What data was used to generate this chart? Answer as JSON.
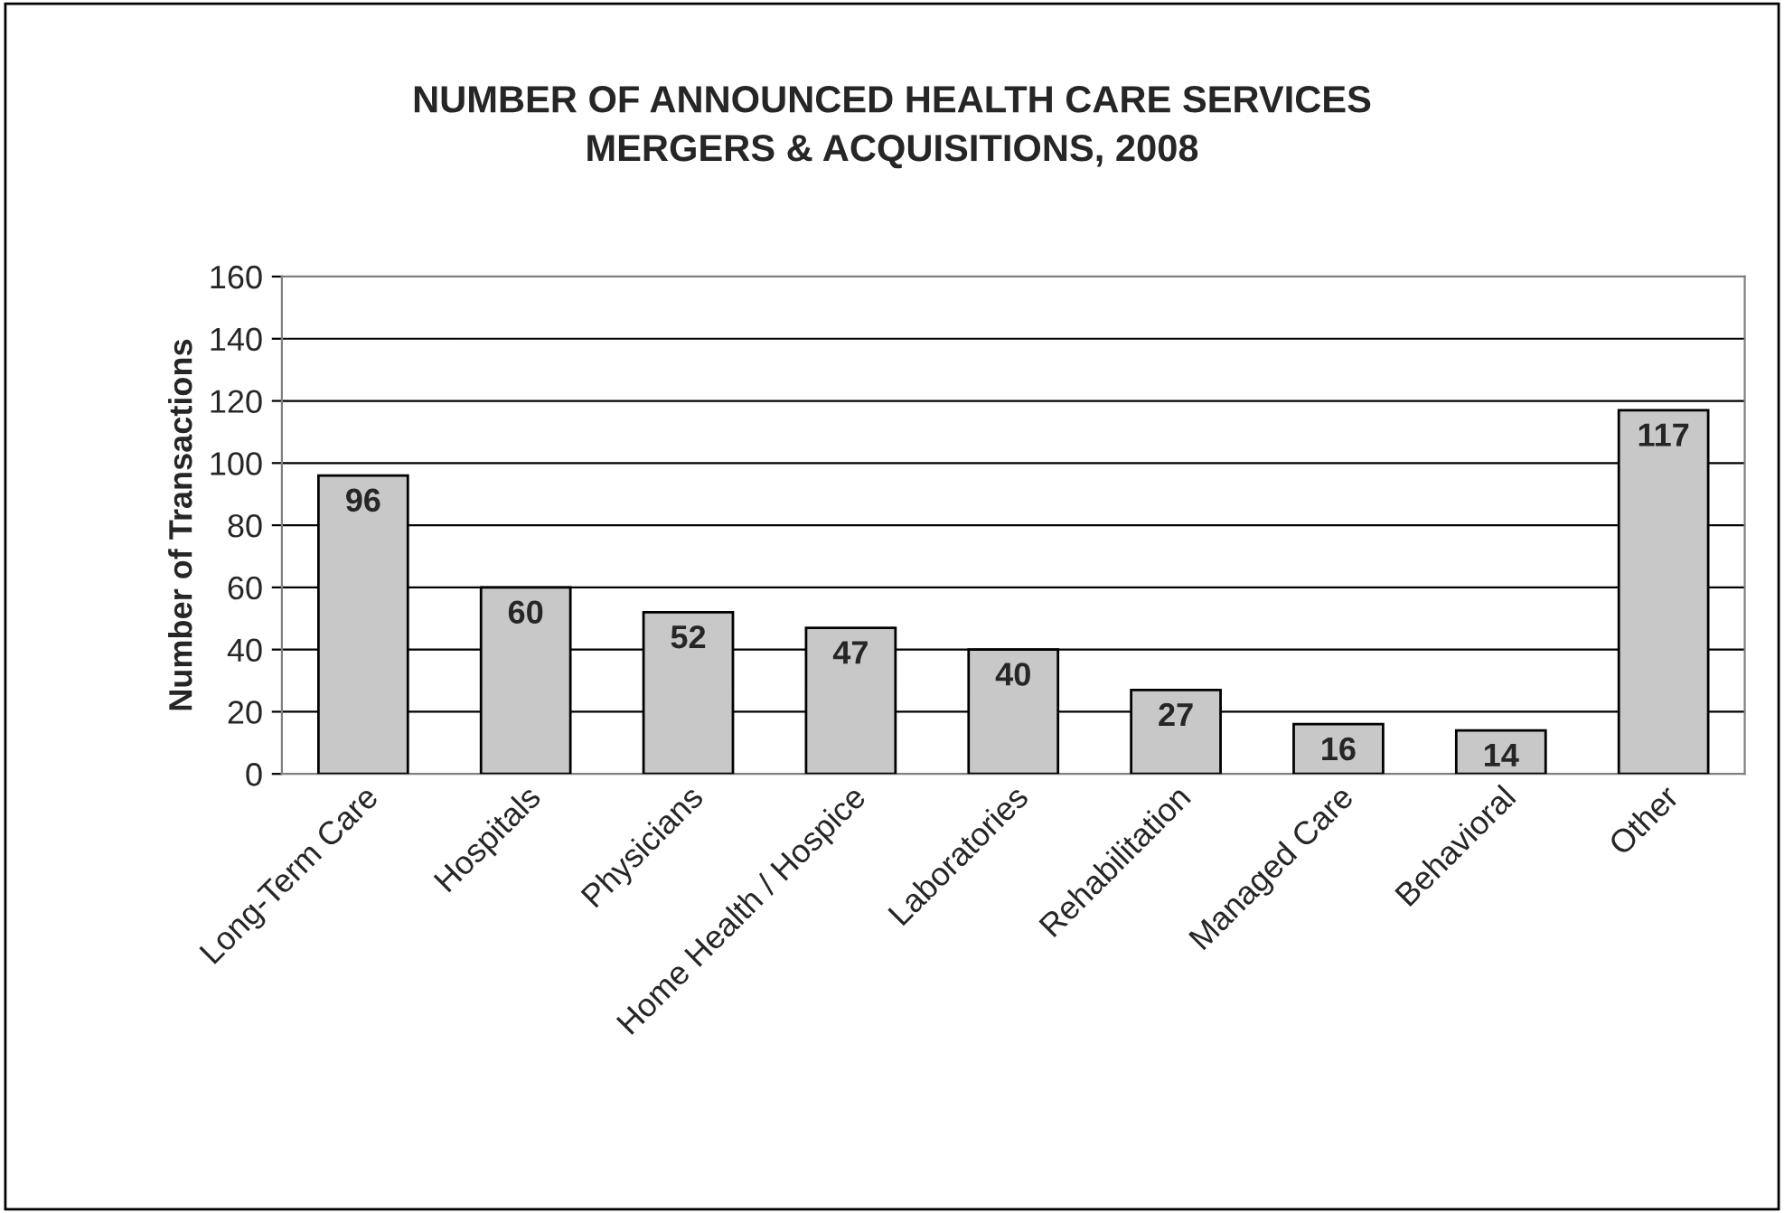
{
  "chart_data": {
    "type": "bar",
    "title": "NUMBER OF ANNOUNCED HEALTH CARE SERVICES\nMERGERS & ACQUISITIONS, 2008",
    "ylabel": "Number of Transactions",
    "categories": [
      "Long-Term Care",
      "Hospitals",
      "Physicians",
      "Home Health / Hospice",
      "Laboratories",
      "Rehabilitation",
      "Managed Care",
      "Behavioral",
      "Other"
    ],
    "values": [
      96,
      60,
      52,
      47,
      40,
      27,
      16,
      14,
      117
    ],
    "color": "#c8c8c8",
    "ylim": [
      0,
      160
    ],
    "yticks": [
      0,
      20,
      40,
      60,
      80,
      100,
      120,
      140,
      160
    ],
    "grid": "y",
    "data_labels": true,
    "legend": false
  }
}
